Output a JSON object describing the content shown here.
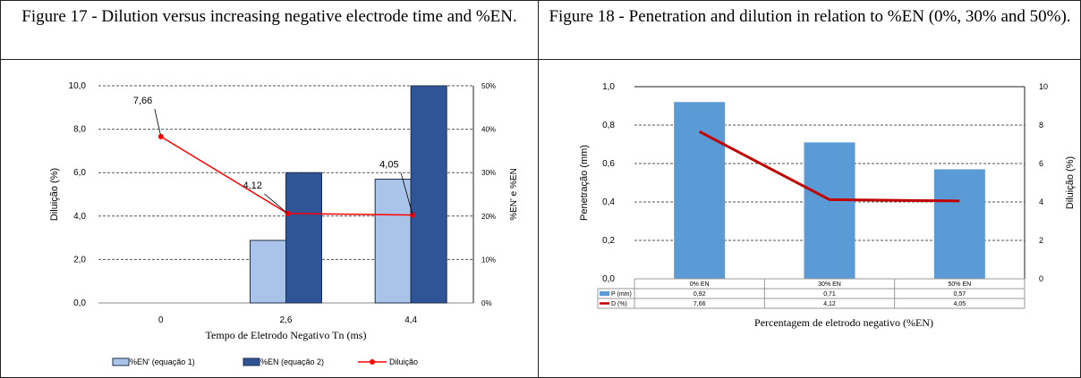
{
  "figures": {
    "fig17_title": "Figure 17 - Dilution versus increasing negative electrode time and %EN.",
    "fig18_title": "Figure 18 - Penetration and dilution in relation to %EN (0%, 30% and 50%)."
  },
  "chart_data": [
    {
      "type": "bar",
      "title": "",
      "xlabel": "Tempo de Eletrodo Negativo Tn (ms)",
      "ylabel": "Diluição (%)",
      "y2label": "%EN' e %EN",
      "categories": [
        "0",
        "2,6",
        "4,4"
      ],
      "ylim": [
        0,
        10
      ],
      "yticks": [
        "0,0",
        "2,0",
        "4,0",
        "6,0",
        "8,0",
        "10,0"
      ],
      "y2lim": [
        0,
        50
      ],
      "y2ticks": [
        "0%",
        "10%",
        "20%",
        "30%",
        "40%",
        "50%"
      ],
      "series": [
        {
          "name": "%EN' (equação 1)",
          "kind": "bar",
          "axis": "right",
          "values": [
            0,
            14.4,
            28.5
          ],
          "color": "#a9c4e8"
        },
        {
          "name": "%EN (equação 2)",
          "kind": "bar",
          "axis": "right",
          "values": [
            0,
            30,
            50
          ],
          "color": "#2f5596"
        },
        {
          "name": "Diluição",
          "kind": "line",
          "axis": "left",
          "values": [
            7.66,
            4.12,
            4.05
          ],
          "labels": [
            "7,66",
            "4,12",
            "4,05"
          ],
          "color": "#ff0000"
        }
      ],
      "grid": true,
      "legend": "bottom"
    },
    {
      "type": "bar",
      "title": "",
      "xlabel": "Percentagem de eletrodo negativo (%EN)",
      "ylabel": "Penetração (mm)",
      "y2label": "Diluição (%)",
      "categories": [
        "0% EN",
        "30% EN",
        "50% EN"
      ],
      "ylim": [
        0,
        1
      ],
      "yticks": [
        "0,0",
        "0,2",
        "0,4",
        "0,6",
        "0,8",
        "1,0"
      ],
      "y2lim": [
        0,
        10
      ],
      "y2ticks": [
        "0",
        "2",
        "4",
        "6",
        "8",
        "10"
      ],
      "series": [
        {
          "name": "P (mm)",
          "kind": "bar",
          "axis": "left",
          "values": [
            0.92,
            0.71,
            0.57
          ],
          "labels": [
            "0,92",
            "0,71",
            "0,57"
          ],
          "color": "#5b9bd5"
        },
        {
          "name": "D (%)",
          "kind": "line",
          "axis": "right",
          "values": [
            7.66,
            4.12,
            4.05
          ],
          "labels": [
            "7,66",
            "4,12",
            "4,05"
          ],
          "color": "#c00000"
        }
      ],
      "grid": true,
      "legend": "data-table"
    }
  ]
}
